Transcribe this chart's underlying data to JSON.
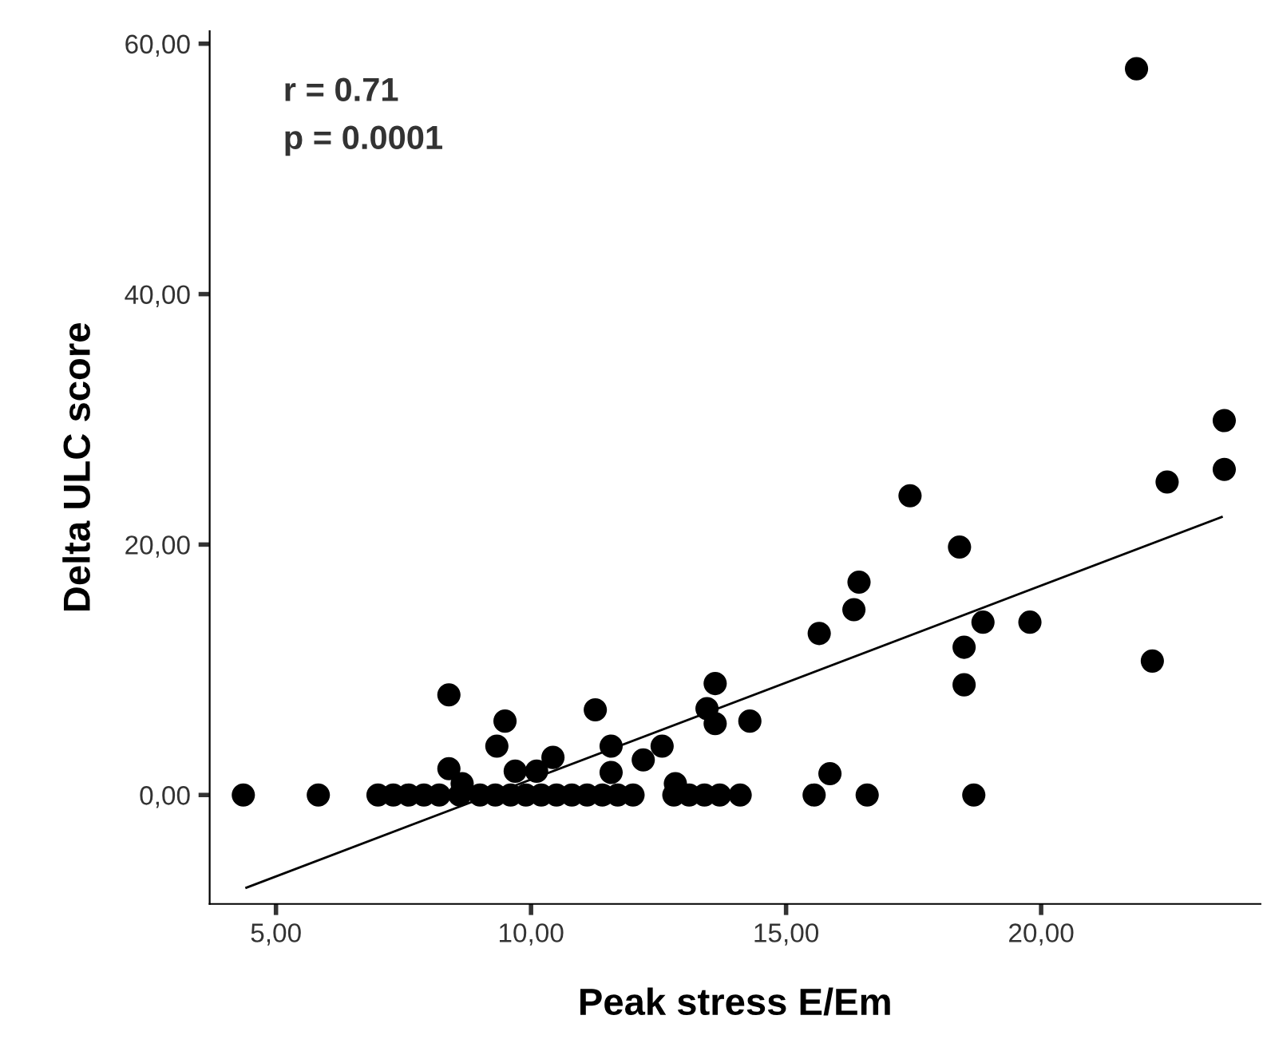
{
  "chart_data": {
    "type": "scatter",
    "xlabel": "Peak stress E/Em",
    "ylabel": "Delta ULC score",
    "annotations": [
      "r = 0.71",
      "p = 0.0001"
    ],
    "xlim": [
      3.7,
      24.3
    ],
    "ylim": [
      -8.7,
      61
    ],
    "xticks": [
      {
        "value": 5,
        "label": "5,00"
      },
      {
        "value": 10,
        "label": "10,00"
      },
      {
        "value": 15,
        "label": "15,00"
      },
      {
        "value": 20,
        "label": "20,00"
      }
    ],
    "yticks": [
      {
        "value": 0,
        "label": "0,00"
      },
      {
        "value": 20,
        "label": "20,00"
      },
      {
        "value": 40,
        "label": "40,00"
      },
      {
        "value": 60,
        "label": "60,00"
      }
    ],
    "grid": false,
    "marker": "circle",
    "series": [
      {
        "color": "#000000",
        "x": [
          4.36,
          5.83,
          7.0,
          7.3,
          7.6,
          7.9,
          8.2,
          8.6,
          9.0,
          9.3,
          9.6,
          9.9,
          10.2,
          10.5,
          10.8,
          11.1,
          11.4,
          11.7,
          12.0,
          12.8,
          13.1,
          13.4,
          13.7,
          14.1,
          15.55,
          16.59,
          18.68,
          8.39,
          9.49,
          9.33,
          8.39,
          8.65,
          9.69,
          10.11,
          10.43,
          11.26,
          11.57,
          11.57,
          12.2,
          12.57,
          12.83,
          13.61,
          13.45,
          13.61,
          14.29,
          21.87,
          23.59,
          23.59,
          22.47,
          17.43,
          18.4,
          16.43,
          16.33,
          15.65,
          18.86,
          19.78,
          18.49,
          18.49,
          22.18,
          15.86
        ],
        "values": [
          0,
          0,
          0,
          0,
          0,
          0,
          0,
          0,
          0,
          0,
          0,
          0,
          0,
          0,
          0,
          0,
          0,
          0,
          0,
          0,
          0,
          0,
          0,
          0,
          0,
          0,
          0,
          8.0,
          5.9,
          3.9,
          2.1,
          0.9,
          1.9,
          1.9,
          3.0,
          6.8,
          3.9,
          1.8,
          2.8,
          3.9,
          0.9,
          8.9,
          6.9,
          5.7,
          5.9,
          58.0,
          29.9,
          26.0,
          25.0,
          23.9,
          19.8,
          17.0,
          14.8,
          12.9,
          13.8,
          13.8,
          11.8,
          8.8,
          10.7,
          1.7
        ]
      },
      {
        "type": "line",
        "color": "#000000",
        "marker": "none",
        "x": [
          4.42,
          23.54
        ],
        "values": [
          -7.4,
          22.2
        ]
      }
    ]
  }
}
